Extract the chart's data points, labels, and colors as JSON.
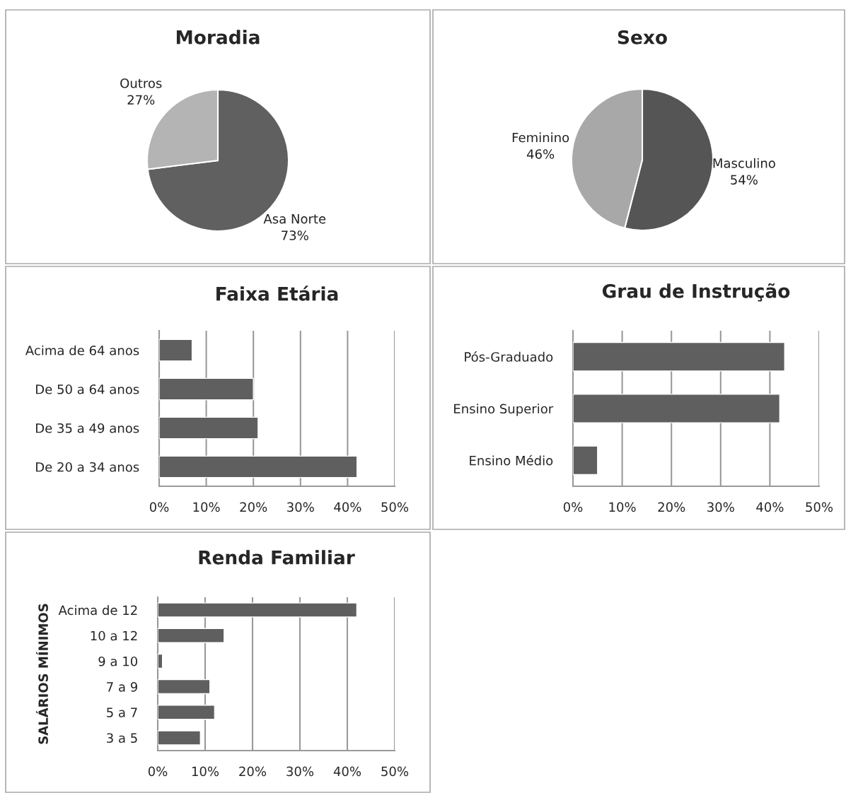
{
  "chart_data": [
    {
      "type": "pie",
      "title": "Moradia",
      "categories": [
        "Asa Norte",
        "Outros"
      ],
      "values": [
        73,
        27
      ],
      "value_labels": [
        "73%",
        "27%"
      ],
      "colors": [
        "#606060",
        "#b4b4b4"
      ]
    },
    {
      "type": "pie",
      "title": "Sexo",
      "categories": [
        "Masculino",
        "Feminino"
      ],
      "values": [
        54,
        46
      ],
      "value_labels": [
        "54%",
        "46%"
      ],
      "colors": [
        "#555555",
        "#a8a8a8"
      ]
    },
    {
      "type": "bar",
      "orientation": "horizontal",
      "title": "Faixa Etária",
      "categories": [
        "Acima de 64 anos",
        "De 50 a 64 anos",
        "De 35 a 49 anos",
        "De 20 a 34 anos"
      ],
      "values": [
        7,
        20,
        21,
        42
      ],
      "color": "#5f5f5f",
      "xlim": [
        0,
        50
      ],
      "xticks": [
        {
          "value": 0,
          "label": "0%"
        },
        {
          "value": 10,
          "label": "10%"
        },
        {
          "value": 20,
          "label": "20%"
        },
        {
          "value": 30,
          "label": "30%"
        },
        {
          "value": 40,
          "label": "40%"
        },
        {
          "value": 50,
          "label": "50%"
        }
      ],
      "grid": "x"
    },
    {
      "type": "bar",
      "orientation": "horizontal",
      "title": "Grau de Instrução",
      "categories": [
        "Pós-Graduado",
        "Ensino Superior",
        "Ensino Médio"
      ],
      "values": [
        43,
        42,
        5
      ],
      "color": "#5f5f5f",
      "xlim": [
        0,
        50
      ],
      "xticks": [
        {
          "value": 0,
          "label": "0%"
        },
        {
          "value": 10,
          "label": "10%"
        },
        {
          "value": 20,
          "label": "20%"
        },
        {
          "value": 30,
          "label": "30%"
        },
        {
          "value": 40,
          "label": "40%"
        },
        {
          "value": 50,
          "label": "50%"
        }
      ],
      "grid": "x"
    },
    {
      "type": "bar",
      "orientation": "horizontal",
      "title": "Renda Familiar",
      "ylabel": "SALÁRIOS MÍNIMOS",
      "categories": [
        "Acima de 12",
        "10 a 12",
        "9 a 10",
        "7 a 9",
        "5 a 7",
        "3 a 5"
      ],
      "values": [
        42,
        14,
        1,
        11,
        12,
        9
      ],
      "color": "#5f5f5f",
      "xlim": [
        0,
        50
      ],
      "xticks": [
        {
          "value": 0,
          "label": "0%"
        },
        {
          "value": 10,
          "label": "10%"
        },
        {
          "value": 20,
          "label": "20%"
        },
        {
          "value": 30,
          "label": "30%"
        },
        {
          "value": 40,
          "label": "40%"
        },
        {
          "value": 50,
          "label": "50%"
        }
      ],
      "grid": "x"
    }
  ]
}
